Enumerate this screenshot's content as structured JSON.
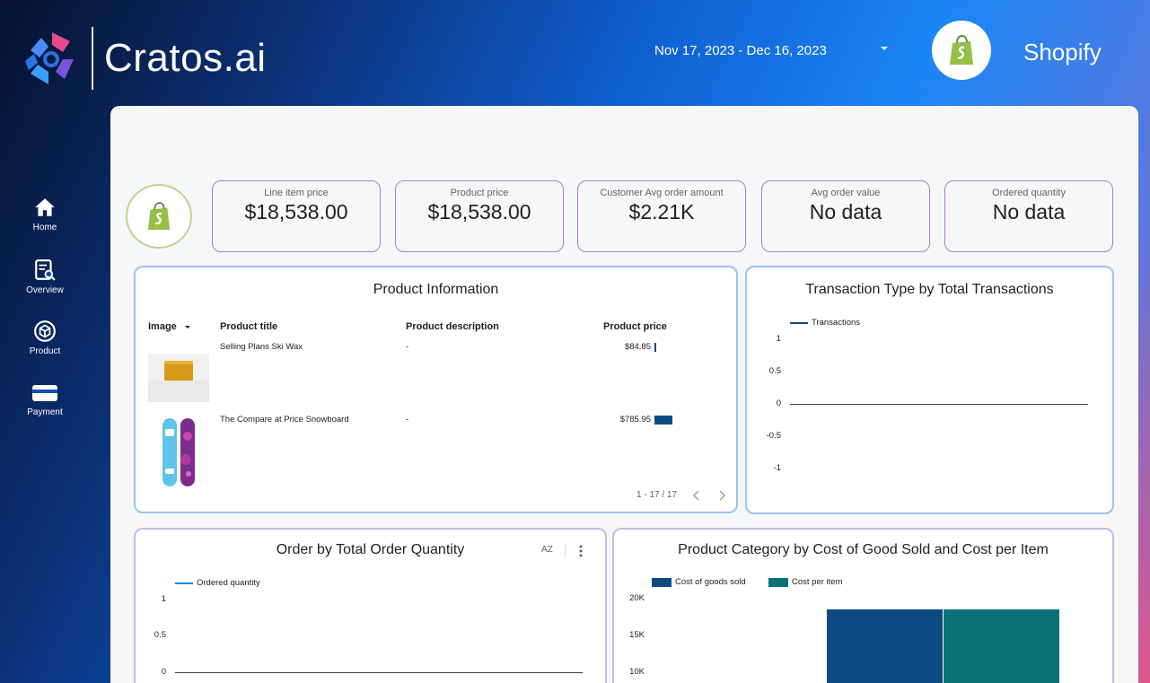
{
  "header": {
    "logo_text": "Cratos.ai",
    "date_range": "Nov 17, 2023 - Dec 16, 2023",
    "shop_name": "Shopify"
  },
  "sidebar": {
    "items": [
      {
        "label": "Home",
        "icon": "home-icon"
      },
      {
        "label": "Overview",
        "icon": "overview-icon"
      },
      {
        "label": "Product",
        "icon": "product-icon"
      },
      {
        "label": "Payment",
        "icon": "payment-icon"
      }
    ]
  },
  "kpis": [
    {
      "label": "Line item price",
      "value": "$18,538.00"
    },
    {
      "label": "Product price",
      "value": "$18,538.00"
    },
    {
      "label": "Customer Avg order amount",
      "value": "$2.21K"
    },
    {
      "label": "Avg order value",
      "value": "No data"
    },
    {
      "label": "Ordered quantity",
      "value": "No data"
    }
  ],
  "product_table": {
    "title": "Product Information",
    "columns": [
      "Image",
      "Product title",
      "Product description",
      "Product price"
    ],
    "rows": [
      {
        "title": "Selling Plans Ski Wax",
        "description": "-",
        "price": "$84.85",
        "price_value": 84.85
      },
      {
        "title": "The Compare at Price Snowboard",
        "description": "-",
        "price": "$785.95",
        "price_value": 785.95
      }
    ],
    "pagination": "1 - 17 / 17"
  },
  "transaction_chart": {
    "title": "Transaction Type by Total Transactions",
    "legend": "Transactions",
    "yticks": [
      "1",
      "0.5",
      "0",
      "-0.5",
      "-1"
    ]
  },
  "order_chart": {
    "title": "Order by Total Order Quantity",
    "legend": "Ordered quantity",
    "yticks": [
      "1",
      "0.5",
      "0"
    ],
    "sort_icon_label": "AZ"
  },
  "category_chart": {
    "title": "Product Category by Cost of Good Sold and Cost per Item",
    "legend": [
      "Cost of goods sold",
      "Cost per item"
    ],
    "yticks": [
      "20K",
      "15K",
      "10K"
    ]
  },
  "colors": {
    "accent_dark": "#0d4a83",
    "accent_teal": "#0a7178",
    "line_blue": "#1e88e5",
    "shopify_green": "#95bf47"
  },
  "chart_data": [
    {
      "type": "line",
      "title": "Transaction Type by Total Transactions",
      "series": [
        {
          "name": "Transactions",
          "values": []
        }
      ],
      "ylim": [
        -1,
        1
      ]
    },
    {
      "type": "line",
      "title": "Order by Total Order Quantity",
      "series": [
        {
          "name": "Ordered quantity",
          "values": []
        }
      ],
      "ylim": [
        0,
        1
      ]
    },
    {
      "type": "bar",
      "title": "Product Category by Cost of Good Sold and Cost per Item",
      "categories": [
        ""
      ],
      "series": [
        {
          "name": "Cost of goods sold",
          "values": [
            18538
          ]
        },
        {
          "name": "Cost per item",
          "values": [
            18538
          ]
        }
      ],
      "ylim": [
        0,
        20000
      ]
    }
  ]
}
